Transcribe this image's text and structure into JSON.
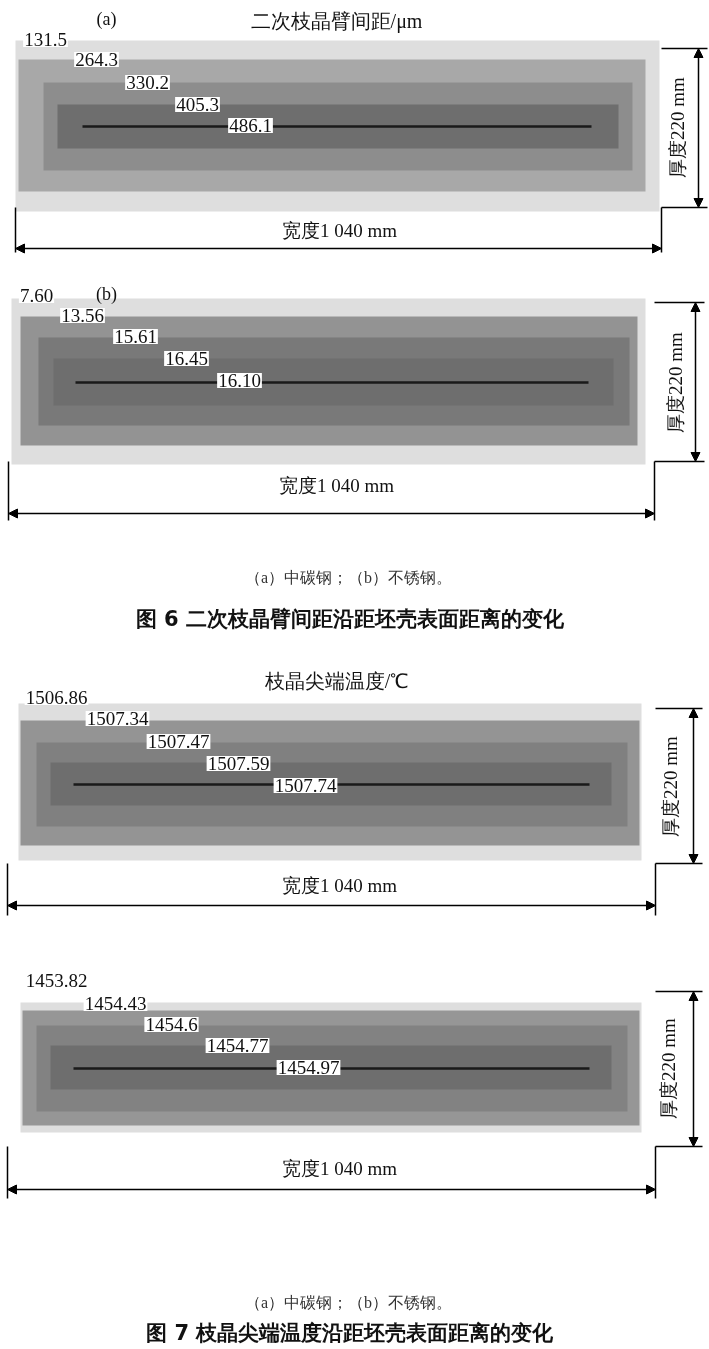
{
  "chart_data": [
    {
      "type": "other",
      "title": "二次枝晶臂间距/μm",
      "values": [
        131.5,
        264.3,
        330.2,
        405.3,
        486.1
      ],
      "data_labels": true,
      "annotations": [
        "(a)",
        "宽度1 040 mm",
        "厚度220 mm"
      ]
    },
    {
      "type": "other",
      "values": [
        7.6,
        13.56,
        15.61,
        16.45,
        16.1
      ],
      "value_labels": [
        "7.60",
        "13.56",
        "15.61",
        "16.45",
        "16.10"
      ],
      "annotations": [
        "(b)",
        "宽度1 040 mm",
        "厚度220 mm",
        "（a）中碳钢；（b）不锈钢。",
        "图 6  二次枝晶臂间距沿距坯壳表面距离的变化"
      ]
    },
    {
      "type": "other",
      "title": "枝晶尖端温度/℃",
      "values": [
        1506.86,
        1507.34,
        1507.47,
        1507.59,
        1507.74
      ],
      "data_labels": true,
      "annotations": [
        "宽度1 040 mm",
        "厚度220 mm"
      ]
    },
    {
      "type": "other",
      "values": [
        1453.82,
        1454.43,
        1454.6,
        1454.77,
        1454.97
      ],
      "data_labels": true,
      "annotations": [
        "宽度1 040 mm",
        "厚度220 mm",
        "（a）中碳钢；（b）不锈钢。",
        "图 7  枝晶尖端温度沿距坯壳表面距离的变化"
      ]
    }
  ]
}
